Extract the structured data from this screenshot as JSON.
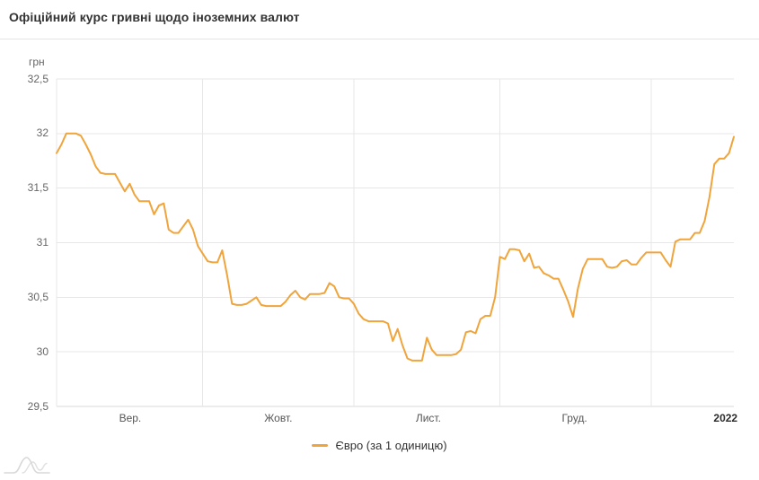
{
  "header": {
    "title": "Офіційний курс гривні щодо іноземних валют"
  },
  "colors": {
    "line": "#F0A43C",
    "grid": "#E7E7E7",
    "axis_line": "#D9D9D9",
    "title_text": "#333333",
    "y_label_text": "#666666",
    "x_label_text": "#555555",
    "watermark": "#D8D8D8"
  },
  "icons": {
    "legend_marker": "line-marker-icon",
    "watermark": "area-chart-watermark-icon"
  },
  "chart_data": {
    "type": "line",
    "title": "Офіційний курс гривні щодо іноземних валют",
    "y_unit": "грн",
    "ylabel": "грн",
    "xlabel": "",
    "grid": true,
    "ylim": [
      29.5,
      32.5
    ],
    "y_ticks": [
      {
        "value": 32.5,
        "label": "32,5"
      },
      {
        "value": 32.0,
        "label": "32"
      },
      {
        "value": 31.5,
        "label": "31,5"
      },
      {
        "value": 31.0,
        "label": "31"
      },
      {
        "value": 30.5,
        "label": "30,5"
      },
      {
        "value": 30.0,
        "label": "30"
      },
      {
        "value": 29.5,
        "label": "29,5"
      }
    ],
    "x_axis": {
      "span_days": 139,
      "gridline_days": [
        0,
        30,
        61,
        91,
        122
      ],
      "labels": [
        {
          "day": 15.1,
          "text": "Вер.",
          "bold": false
        },
        {
          "day": 45.5,
          "text": "Жовт.",
          "bold": false
        },
        {
          "day": 76.3,
          "text": "Лист.",
          "bold": false
        },
        {
          "day": 106.3,
          "text": "Груд.",
          "bold": false
        },
        {
          "day": 137.3,
          "text": "2022",
          "bold": true
        }
      ]
    },
    "legend": {
      "position": "bottom",
      "items": [
        {
          "label": "Євро (за 1 одиницю)",
          "color": "#F0A43C"
        }
      ]
    },
    "series": [
      {
        "name": "Євро (за 1 одиницю)",
        "color": "#F0A43C",
        "interval": "daily",
        "values": [
          31.82,
          31.9,
          32.0,
          32.0,
          32.0,
          31.98,
          31.9,
          31.81,
          31.7,
          31.64,
          31.63,
          31.63,
          31.63,
          31.55,
          31.47,
          31.54,
          31.44,
          31.38,
          31.38,
          31.38,
          31.26,
          31.34,
          31.36,
          31.12,
          31.09,
          31.09,
          31.15,
          31.21,
          31.12,
          30.97,
          30.9,
          30.83,
          30.82,
          30.82,
          30.93,
          30.7,
          30.44,
          30.43,
          30.43,
          30.44,
          30.47,
          30.5,
          30.43,
          30.42,
          30.42,
          30.42,
          30.42,
          30.46,
          30.52,
          30.56,
          30.5,
          30.48,
          30.53,
          30.53,
          30.53,
          30.54,
          30.63,
          30.6,
          30.5,
          30.49,
          30.49,
          30.44,
          30.35,
          30.3,
          30.28,
          30.28,
          30.28,
          30.28,
          30.26,
          30.1,
          30.21,
          30.06,
          29.94,
          29.92,
          29.92,
          29.92,
          30.13,
          30.02,
          29.97,
          29.97,
          29.97,
          29.97,
          29.98,
          30.02,
          30.18,
          30.19,
          30.17,
          30.3,
          30.33,
          30.33,
          30.5,
          30.87,
          30.85,
          30.94,
          30.94,
          30.93,
          30.83,
          30.9,
          30.77,
          30.78,
          30.72,
          30.7,
          30.67,
          30.67,
          30.57,
          30.46,
          30.32,
          30.58,
          30.76,
          30.85,
          30.85,
          30.85,
          30.85,
          30.78,
          30.77,
          30.78,
          30.83,
          30.84,
          30.8,
          30.8,
          30.86,
          30.91,
          30.91,
          30.91,
          30.91,
          30.84,
          30.78,
          31.01,
          31.03,
          31.03,
          31.03,
          31.09,
          31.09,
          31.2,
          31.42,
          31.72,
          31.77,
          31.77,
          31.82,
          31.97
        ]
      }
    ]
  }
}
